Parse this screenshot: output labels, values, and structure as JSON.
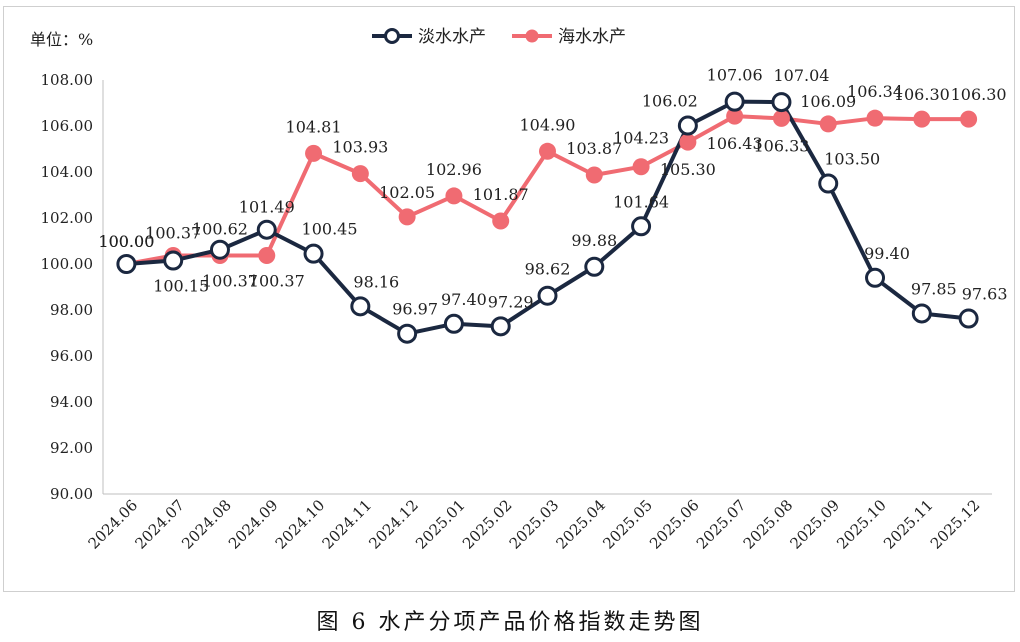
{
  "chart_data": {
    "type": "line",
    "unit_label": "单位：%",
    "caption": "图 6 水产分项产品价格指数走势图",
    "ylim": [
      90,
      108
    ],
    "yticks": [
      "90.00",
      "92.00",
      "94.00",
      "96.00",
      "98.00",
      "100.00",
      "102.00",
      "104.00",
      "106.00",
      "108.00"
    ],
    "categories": [
      "2024.06",
      "2024.07",
      "2024.08",
      "2024.09",
      "2024.10",
      "2024.11",
      "2024.12",
      "2025.01",
      "2025.02",
      "2025.03",
      "2025.04",
      "2025.05",
      "2025.06",
      "2025.07",
      "2025.08",
      "2025.09",
      "2025.10",
      "2025.11",
      "2025.12"
    ],
    "legend_position": "top-center",
    "grid": false,
    "series": [
      {
        "name": "淡水水产",
        "color": "#1b2840",
        "marker": "hollow-circle",
        "values": [
          100.0,
          100.15,
          100.62,
          101.49,
          100.45,
          98.16,
          96.97,
          97.4,
          97.29,
          98.62,
          99.88,
          101.64,
          106.02,
          107.06,
          107.04,
          103.5,
          99.4,
          97.85,
          97.63
        ],
        "labels": [
          "100.00",
          "100.15",
          "100.62",
          "101.49",
          "100.45",
          "98.16",
          "96.97",
          "97.40",
          "97.29",
          "98.62",
          "99.88",
          "101.64",
          "106.02",
          "107.06",
          "107.04",
          "103.50",
          "99.40",
          "97.85",
          "97.63"
        ]
      },
      {
        "name": "海水水产",
        "color": "#f06b72",
        "marker": "filled-circle",
        "values": [
          100.0,
          100.37,
          100.37,
          100.37,
          104.81,
          103.93,
          102.05,
          102.96,
          101.87,
          104.9,
          103.87,
          104.23,
          105.3,
          106.43,
          106.33,
          106.09,
          106.34,
          106.3,
          106.3
        ],
        "labels": [
          "100.00",
          "100.37",
          "100.37",
          "100.37",
          "104.81",
          "103.93",
          "102.05",
          "102.96",
          "101.87",
          "104.90",
          "103.87",
          "104.23",
          "105.30",
          "106.43",
          "106.33",
          "106.09",
          "106.34",
          "106.30",
          "106.30"
        ]
      }
    ]
  }
}
